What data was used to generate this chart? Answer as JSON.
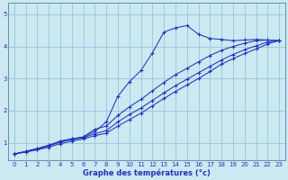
{
  "background_color": "#cce8f0",
  "grid_color": "#99cce0",
  "line_color": "#2233bb",
  "xlabel": "Graphe des températures (°c)",
  "xlim": [
    -0.5,
    23.5
  ],
  "ylim": [
    0.45,
    5.35
  ],
  "yticks": [
    1,
    2,
    3,
    4,
    5
  ],
  "xticks": [
    0,
    1,
    2,
    3,
    4,
    5,
    6,
    7,
    8,
    9,
    10,
    11,
    12,
    13,
    14,
    15,
    16,
    17,
    18,
    19,
    20,
    21,
    22,
    23
  ],
  "series": [
    {
      "x": [
        0,
        1,
        2,
        3,
        4,
        5,
        6,
        7,
        8,
        9,
        10,
        11,
        12,
        13,
        14,
        15,
        16,
        17,
        18,
        19,
        20,
        21,
        22,
        23
      ],
      "y": [
        0.65,
        0.73,
        0.82,
        0.92,
        1.05,
        1.12,
        1.18,
        1.35,
        1.65,
        2.45,
        2.9,
        3.25,
        3.8,
        4.45,
        4.58,
        4.65,
        4.38,
        4.25,
        4.22,
        4.18,
        4.2,
        4.22,
        4.2,
        4.18
      ]
    },
    {
      "x": [
        0,
        1,
        2,
        3,
        4,
        5,
        6,
        7,
        8,
        9,
        10,
        11,
        12,
        13,
        14,
        15,
        16,
        17,
        18,
        19,
        20,
        21,
        22,
        23
      ],
      "y": [
        0.65,
        0.73,
        0.82,
        0.92,
        1.05,
        1.12,
        1.18,
        1.42,
        1.52,
        1.85,
        2.12,
        2.35,
        2.62,
        2.88,
        3.12,
        3.32,
        3.52,
        3.72,
        3.88,
        4.0,
        4.1,
        4.18,
        4.2,
        4.18
      ]
    },
    {
      "x": [
        0,
        1,
        2,
        3,
        4,
        5,
        6,
        7,
        8,
        9,
        10,
        11,
        12,
        13,
        14,
        15,
        16,
        17,
        18,
        19,
        20,
        21,
        22,
        23
      ],
      "y": [
        0.65,
        0.72,
        0.8,
        0.9,
        1.02,
        1.1,
        1.16,
        1.28,
        1.38,
        1.65,
        1.88,
        2.08,
        2.32,
        2.55,
        2.78,
        2.98,
        3.18,
        3.38,
        3.58,
        3.75,
        3.9,
        4.02,
        4.14,
        4.18
      ]
    },
    {
      "x": [
        0,
        1,
        2,
        3,
        4,
        5,
        6,
        7,
        8,
        9,
        10,
        11,
        12,
        13,
        14,
        15,
        16,
        17,
        18,
        19,
        20,
        21,
        22,
        23
      ],
      "y": [
        0.65,
        0.71,
        0.78,
        0.86,
        0.97,
        1.05,
        1.12,
        1.22,
        1.3,
        1.52,
        1.72,
        1.92,
        2.15,
        2.38,
        2.6,
        2.8,
        3.0,
        3.22,
        3.45,
        3.62,
        3.78,
        3.92,
        4.08,
        4.18
      ]
    }
  ]
}
